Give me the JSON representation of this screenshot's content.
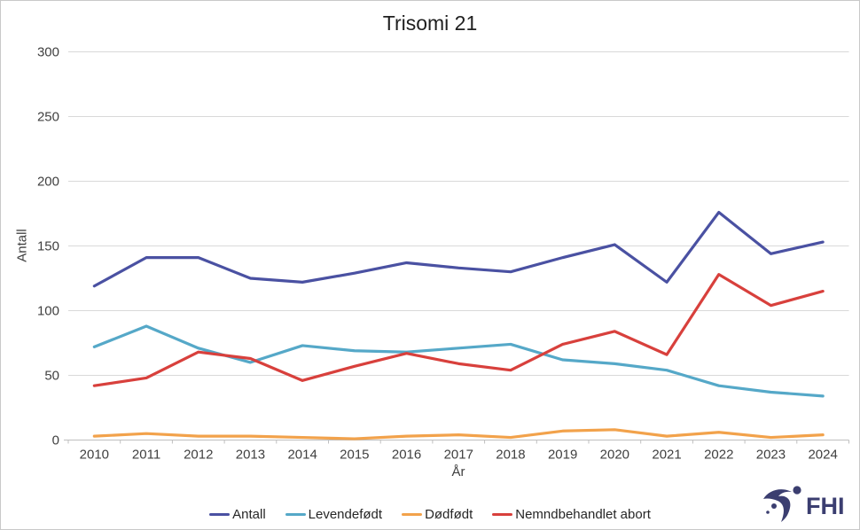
{
  "title": "Trisomi 21",
  "y_axis": {
    "label": "Antall",
    "ticks": [
      0,
      50,
      100,
      150,
      200,
      250,
      300
    ]
  },
  "x_axis": {
    "label": "År"
  },
  "logo": {
    "text": "FHI",
    "color": "#3b3e70"
  },
  "colors": {
    "gridline": "#d9d9d9",
    "axis": "#bfbfbf",
    "tick_text": "#404040",
    "title_text": "#1f1f1f"
  },
  "chart_data": {
    "type": "line",
    "title": "Trisomi 21",
    "xlabel": "År",
    "ylabel": "Antall",
    "ylim": [
      0,
      300
    ],
    "y_tick_step": 50,
    "grid": true,
    "legend_position": "bottom",
    "x": [
      2010,
      2011,
      2012,
      2013,
      2014,
      2015,
      2016,
      2017,
      2018,
      2019,
      2020,
      2021,
      2022,
      2023,
      2024
    ],
    "series": [
      {
        "name": "Antall",
        "color": "#4a51a2",
        "values": [
          119,
          141,
          141,
          125,
          122,
          129,
          137,
          133,
          130,
          141,
          151,
          122,
          176,
          144,
          153
        ]
      },
      {
        "name": "Levendefødt",
        "color": "#55a8c8",
        "values": [
          72,
          88,
          71,
          60,
          73,
          69,
          68,
          71,
          74,
          62,
          59,
          54,
          42,
          37,
          34
        ]
      },
      {
        "name": "Dødfødt",
        "color": "#f2a24b",
        "values": [
          3,
          5,
          3,
          3,
          2,
          1,
          3,
          4,
          2,
          7,
          8,
          3,
          6,
          2,
          4
        ]
      },
      {
        "name": "Nemndbehandlet abort",
        "color": "#d8403c",
        "values": [
          42,
          48,
          68,
          63,
          46,
          57,
          67,
          59,
          54,
          74,
          84,
          66,
          128,
          104,
          115
        ]
      }
    ]
  }
}
